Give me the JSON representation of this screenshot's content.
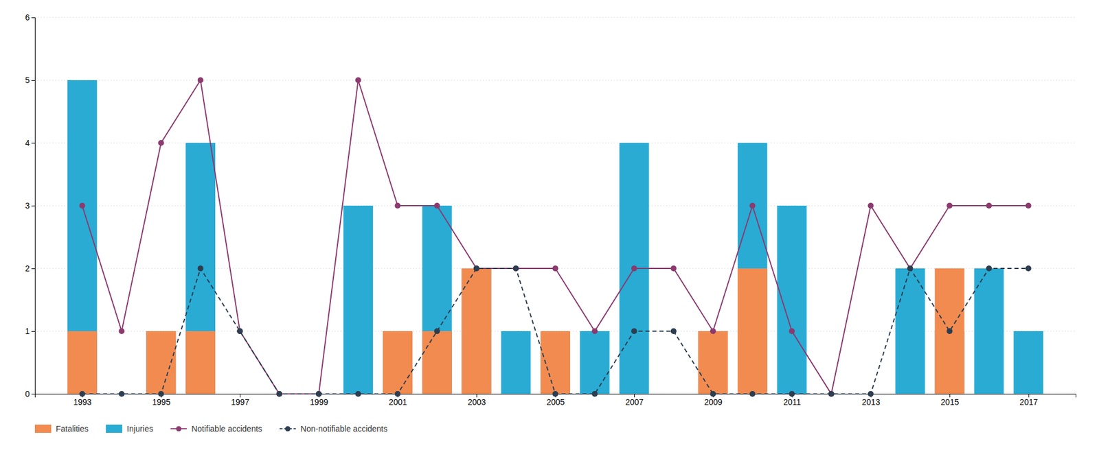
{
  "chart_data": {
    "type": "bar",
    "x": [
      1993,
      1994,
      1995,
      1996,
      1997,
      1998,
      1999,
      2000,
      2001,
      2002,
      2003,
      2004,
      2005,
      2006,
      2007,
      2008,
      2009,
      2010,
      2011,
      2012,
      2013,
      2014,
      2015,
      2016,
      2017
    ],
    "series": [
      {
        "name": "Fatalities",
        "type": "bar",
        "color": "#F28B50",
        "values": [
          1,
          0,
          1,
          1,
          0,
          0,
          0,
          0,
          1,
          1,
          2,
          0,
          1,
          0,
          0,
          0,
          1,
          2,
          0,
          0,
          0,
          0,
          2,
          0,
          0
        ]
      },
      {
        "name": "Injuries",
        "type": "bar",
        "color": "#29ABD4",
        "values": [
          5,
          0,
          1,
          4,
          0,
          0,
          0,
          3,
          1,
          3,
          2,
          1,
          1,
          1,
          4,
          0,
          1,
          4,
          3,
          0,
          0,
          2,
          1,
          2,
          1
        ]
      },
      {
        "name": "Notifiable accidents",
        "type": "line",
        "color": "#8B3A6E",
        "marker": "circle",
        "line_style": "solid",
        "values": [
          3,
          1,
          4,
          5,
          1,
          0,
          0,
          5,
          3,
          3,
          2,
          2,
          2,
          1,
          2,
          2,
          1,
          3,
          1,
          0,
          3,
          2,
          3,
          3,
          3
        ]
      },
      {
        "name": "Non-notifiable accidents",
        "type": "line",
        "color": "#2C3E50",
        "marker": "circle",
        "line_style": "dashed",
        "values": [
          0,
          0,
          0,
          2,
          1,
          0,
          0,
          0,
          0,
          1,
          2,
          2,
          0,
          0,
          1,
          1,
          0,
          0,
          0,
          0,
          0,
          2,
          1,
          2,
          2
        ]
      }
    ],
    "xlim": [
      1991.8,
      2018.2
    ],
    "xticks": [
      1993,
      1995,
      1997,
      1999,
      2001,
      2003,
      2005,
      2007,
      2009,
      2011,
      2013,
      2015,
      2017
    ],
    "ylim": [
      0,
      6
    ],
    "yticks": [
      0,
      1,
      2,
      3,
      4,
      5,
      6
    ],
    "grid": true,
    "legend": "bottom"
  }
}
